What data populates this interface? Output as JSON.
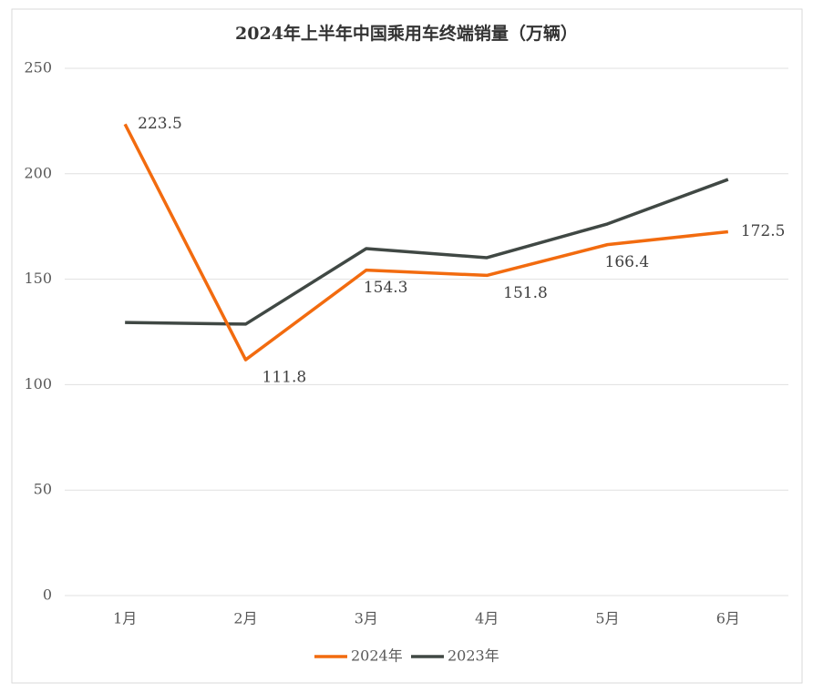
{
  "chart_data": {
    "type": "line",
    "title": "2024年上半年中国乘用车终端销量（万辆）",
    "categories": [
      "1月",
      "2月",
      "3月",
      "4月",
      "5月",
      "6月"
    ],
    "series": [
      {
        "name": "2024年",
        "color": "#f26b0f",
        "values": [
          223.5,
          111.8,
          154.3,
          151.8,
          166.4,
          172.5
        ],
        "data_labels": true
      },
      {
        "name": "2023年",
        "color": "#404844",
        "values": [
          129.5,
          128.7,
          164.5,
          160.2,
          176.2,
          197.3
        ],
        "data_labels": false
      }
    ],
    "ylim": [
      0,
      250
    ],
    "yticks": [
      0,
      50,
      100,
      150,
      200,
      250
    ],
    "grid": true,
    "legend": "bottom"
  }
}
